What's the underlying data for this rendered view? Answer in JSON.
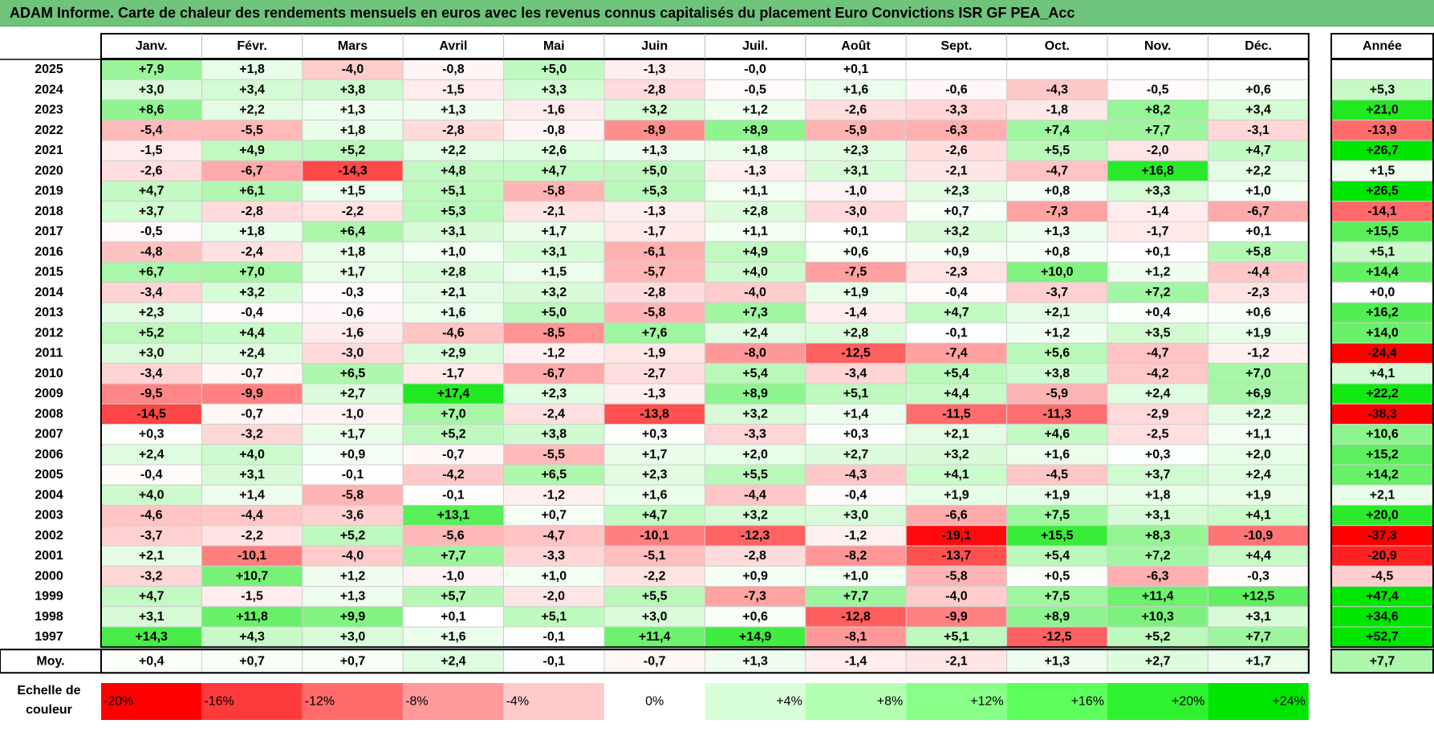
{
  "title": "ADAM Informe. Carte de chaleur des rendements mensuels en euros avec les revenus connus capitalisés du placement Euro Convictions ISR GF PEA_Acc",
  "chart_data": {
    "type": "heatmap",
    "title": "ADAM Informe. Carte de chaleur des rendements mensuels en euros avec les revenus connus capitalisés du placement Euro Convictions ISR GF PEA_Acc",
    "months": [
      "Janv.",
      "Févr.",
      "Mars",
      "Avril",
      "Mai",
      "Juin",
      "Juil.",
      "Août",
      "Sept.",
      "Oct.",
      "Nov.",
      "Déc."
    ],
    "annual_header": "Année",
    "rows": [
      {
        "year": "2025",
        "months": [
          "+7,9",
          "+1,8",
          "-4,0",
          "-0,8",
          "+5,0",
          "-1,3",
          "-0,0",
          "+0,1",
          "",
          "",
          "",
          ""
        ],
        "annual": ""
      },
      {
        "year": "2024",
        "months": [
          "+3,0",
          "+3,4",
          "+3,8",
          "-1,5",
          "+3,3",
          "-2,8",
          "-0,5",
          "+1,6",
          "-0,6",
          "-4,3",
          "-0,5",
          "+0,6"
        ],
        "annual": "+5,3"
      },
      {
        "year": "2023",
        "months": [
          "+8,6",
          "+2,2",
          "+1,3",
          "+1,3",
          "-1,6",
          "+3,2",
          "+1,2",
          "-2,6",
          "-3,3",
          "-1,8",
          "+8,2",
          "+3,4"
        ],
        "annual": "+21,0"
      },
      {
        "year": "2022",
        "months": [
          "-5,4",
          "-5,5",
          "+1,8",
          "-2,8",
          "-0,8",
          "-8,9",
          "+8,9",
          "-5,9",
          "-6,3",
          "+7,4",
          "+7,7",
          "-3,1"
        ],
        "annual": "-13,9"
      },
      {
        "year": "2021",
        "months": [
          "-1,5",
          "+4,9",
          "+5,2",
          "+2,2",
          "+2,6",
          "+1,3",
          "+1,8",
          "+2,3",
          "-2,6",
          "+5,5",
          "-2,0",
          "+4,7"
        ],
        "annual": "+26,7"
      },
      {
        "year": "2020",
        "months": [
          "-2,6",
          "-6,7",
          "-14,3",
          "+4,8",
          "+4,7",
          "+5,0",
          "-1,3",
          "+3,1",
          "-2,1",
          "-4,7",
          "+16,8",
          "+2,2"
        ],
        "annual": "+1,5"
      },
      {
        "year": "2019",
        "months": [
          "+4,7",
          "+6,1",
          "+1,5",
          "+5,1",
          "-5,8",
          "+5,3",
          "+1,1",
          "-1,0",
          "+2,3",
          "+0,8",
          "+3,3",
          "+1,0"
        ],
        "annual": "+26,5"
      },
      {
        "year": "2018",
        "months": [
          "+3,7",
          "-2,8",
          "-2,2",
          "+5,3",
          "-2,1",
          "-1,3",
          "+2,8",
          "-3,0",
          "+0,7",
          "-7,3",
          "-1,4",
          "-6,7"
        ],
        "annual": "-14,1"
      },
      {
        "year": "2017",
        "months": [
          "-0,5",
          "+1,8",
          "+6,4",
          "+3,1",
          "+1,7",
          "-1,7",
          "+1,1",
          "+0,1",
          "+3,2",
          "+1,3",
          "-1,7",
          "+0,1"
        ],
        "annual": "+15,5"
      },
      {
        "year": "2016",
        "months": [
          "-4,8",
          "-2,4",
          "+1,8",
          "+1,0",
          "+3,1",
          "-6,1",
          "+4,9",
          "+0,6",
          "+0,9",
          "+0,8",
          "+0,1",
          "+5,8"
        ],
        "annual": "+5,1"
      },
      {
        "year": "2015",
        "months": [
          "+6,7",
          "+7,0",
          "+1,7",
          "+2,8",
          "+1,5",
          "-5,7",
          "+4,0",
          "-7,5",
          "-2,3",
          "+10,0",
          "+1,2",
          "-4,4"
        ],
        "annual": "+14,4"
      },
      {
        "year": "2014",
        "months": [
          "-3,4",
          "+3,2",
          "-0,3",
          "+2,1",
          "+3,2",
          "-2,8",
          "-4,0",
          "+1,9",
          "-0,4",
          "-3,7",
          "+7,2",
          "-2,3"
        ],
        "annual": "+0,0"
      },
      {
        "year": "2013",
        "months": [
          "+2,3",
          "-0,4",
          "-0,6",
          "+1,6",
          "+5,0",
          "-5,8",
          "+7,3",
          "-1,4",
          "+4,7",
          "+2,1",
          "+0,4",
          "+0,6"
        ],
        "annual": "+16,2"
      },
      {
        "year": "2012",
        "months": [
          "+5,2",
          "+4,4",
          "-1,6",
          "-4,6",
          "-8,5",
          "+7,6",
          "+2,4",
          "+2,8",
          "-0,1",
          "+1,2",
          "+3,5",
          "+1,9"
        ],
        "annual": "+14,0"
      },
      {
        "year": "2011",
        "months": [
          "+3,0",
          "+2,4",
          "-3,0",
          "+2,9",
          "-1,2",
          "-1,9",
          "-8,0",
          "-12,5",
          "-7,4",
          "+5,6",
          "-4,7",
          "-1,2"
        ],
        "annual": "-24,4"
      },
      {
        "year": "2010",
        "months": [
          "-3,4",
          "-0,7",
          "+6,5",
          "-1,7",
          "-6,7",
          "-2,7",
          "+5,4",
          "-3,4",
          "+5,4",
          "+3,8",
          "-4,2",
          "+7,0"
        ],
        "annual": "+4,1"
      },
      {
        "year": "2009",
        "months": [
          "-9,5",
          "-9,9",
          "+2,7",
          "+17,4",
          "+2,3",
          "-1,3",
          "+8,9",
          "+5,1",
          "+4,4",
          "-5,9",
          "+2,4",
          "+6,9"
        ],
        "annual": "+22,2"
      },
      {
        "year": "2008",
        "months": [
          "-14,5",
          "-0,7",
          "-1,0",
          "+7,0",
          "-2,4",
          "-13,8",
          "+3,2",
          "+1,4",
          "-11,5",
          "-11,3",
          "-2,9",
          "+2,2"
        ],
        "annual": "-38,3"
      },
      {
        "year": "2007",
        "months": [
          "+0,3",
          "-3,2",
          "+1,7",
          "+5,2",
          "+3,8",
          "+0,3",
          "-3,3",
          "+0,3",
          "+2,1",
          "+4,6",
          "-2,5",
          "+1,1"
        ],
        "annual": "+10,6"
      },
      {
        "year": "2006",
        "months": [
          "+2,4",
          "+4,0",
          "+0,9",
          "-0,7",
          "-5,5",
          "+1,7",
          "+2,0",
          "+2,7",
          "+3,2",
          "+1,6",
          "+0,3",
          "+2,0"
        ],
        "annual": "+15,2"
      },
      {
        "year": "2005",
        "months": [
          "-0,4",
          "+3,1",
          "-0,1",
          "-4,2",
          "+6,5",
          "+2,3",
          "+5,5",
          "-4,3",
          "+4,1",
          "-4,5",
          "+3,7",
          "+2,4"
        ],
        "annual": "+14,2"
      },
      {
        "year": "2004",
        "months": [
          "+4,0",
          "+1,4",
          "-5,8",
          "-0,1",
          "-1,2",
          "+1,6",
          "-4,4",
          "-0,4",
          "+1,9",
          "+1,9",
          "+1,8",
          "+1,9"
        ],
        "annual": "+2,1"
      },
      {
        "year": "2003",
        "months": [
          "-4,6",
          "-4,4",
          "-3,6",
          "+13,1",
          "+0,7",
          "+4,7",
          "+3,2",
          "+3,0",
          "-6,6",
          "+7,5",
          "+3,1",
          "+4,1"
        ],
        "annual": "+20,0"
      },
      {
        "year": "2002",
        "months": [
          "-3,7",
          "-2,2",
          "+5,2",
          "-5,6",
          "-4,7",
          "-10,1",
          "-12,3",
          "-1,2",
          "-19,1",
          "+15,5",
          "+8,3",
          "-10,9"
        ],
        "annual": "-37,3"
      },
      {
        "year": "2001",
        "months": [
          "+2,1",
          "-10,1",
          "-4,0",
          "+7,7",
          "-3,3",
          "-5,1",
          "-2,8",
          "-8,2",
          "-13,7",
          "+5,4",
          "+7,2",
          "+4,4"
        ],
        "annual": "-20,9"
      },
      {
        "year": "2000",
        "months": [
          "-3,2",
          "+10,7",
          "+1,2",
          "-1,0",
          "+1,0",
          "-2,2",
          "+0,9",
          "+1,0",
          "-5,8",
          "+0,5",
          "-6,3",
          "-0,3"
        ],
        "annual": "-4,5"
      },
      {
        "year": "1999",
        "months": [
          "+4,7",
          "-1,5",
          "+1,3",
          "+5,7",
          "-2,0",
          "+5,5",
          "-7,3",
          "+7,7",
          "-4,0",
          "+7,5",
          "+11,4",
          "+12,5"
        ],
        "annual": "+47,4"
      },
      {
        "year": "1998",
        "months": [
          "+3,1",
          "+11,8",
          "+9,9",
          "+0,1",
          "+5,1",
          "+3,0",
          "+0,6",
          "-12,8",
          "-9,9",
          "+8,9",
          "+10,3",
          "+3,1"
        ],
        "annual": "+34,6"
      },
      {
        "year": "1997",
        "months": [
          "+14,3",
          "+4,3",
          "+3,0",
          "+1,6",
          "-0,1",
          "+11,4",
          "+14,9",
          "-8,1",
          "+5,1",
          "-12,5",
          "+5,2",
          "+7,7"
        ],
        "annual": "+52,7"
      }
    ],
    "average": {
      "label": "Moy.",
      "months": [
        "+0,4",
        "+0,7",
        "+0,7",
        "+2,4",
        "-0,1",
        "-0,7",
        "+1,3",
        "-1,4",
        "-2,1",
        "+1,3",
        "+2,7",
        "+1,7"
      ],
      "annual": "+7,7"
    },
    "color_scale": {
      "title_line1": "Echelle de",
      "title_line2": "couleur",
      "stops": [
        {
          "label": "-20%",
          "value": -20,
          "color": "#ff0000"
        },
        {
          "label": "-16%",
          "value": -16,
          "color": "#ff3a3a"
        },
        {
          "label": "-12%",
          "value": -12,
          "color": "#ff6b6b"
        },
        {
          "label": "-8%",
          "value": -8,
          "color": "#ff9a9a"
        },
        {
          "label": "-4%",
          "value": -4,
          "color": "#ffcaca"
        },
        {
          "label": "0%",
          "value": 0,
          "color": "#ffffff"
        },
        {
          "label": "+4%",
          "value": 4,
          "color": "#d8ffd8"
        },
        {
          "label": "+8%",
          "value": 8,
          "color": "#b2ffb2"
        },
        {
          "label": "+12%",
          "value": 12,
          "color": "#88ff88"
        },
        {
          "label": "+16%",
          "value": 16,
          "color": "#5cff5c"
        },
        {
          "label": "+20%",
          "value": 20,
          "color": "#2ff22f"
        },
        {
          "label": "+24%",
          "value": 24,
          "color": "#00e600"
        }
      ]
    }
  }
}
